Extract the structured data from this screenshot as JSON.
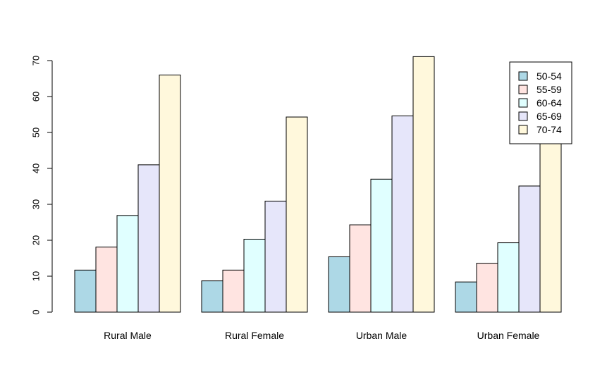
{
  "chart_data": {
    "type": "bar",
    "title": "",
    "xlabel": "",
    "ylabel": "",
    "ylim": [
      0,
      72
    ],
    "yticks": [
      0,
      10,
      20,
      30,
      40,
      50,
      60,
      70
    ],
    "grid": false,
    "legend_position": "top-right",
    "categories": [
      "Rural Male",
      "Rural Female",
      "Urban Male",
      "Urban Female"
    ],
    "series": [
      {
        "name": "50-54",
        "color": "#ADD8E6",
        "values": [
          11.7,
          8.7,
          15.4,
          8.4
        ]
      },
      {
        "name": "55-59",
        "color": "#FFE4E1",
        "values": [
          18.1,
          11.7,
          24.3,
          13.6
        ]
      },
      {
        "name": "60-64",
        "color": "#E0FFFF",
        "values": [
          26.9,
          20.3,
          37.0,
          19.3
        ]
      },
      {
        "name": "65-69",
        "color": "#E6E6FA",
        "values": [
          41.0,
          30.9,
          54.6,
          35.1
        ]
      },
      {
        "name": "70-74",
        "color": "#FFF8DC",
        "values": [
          66.0,
          54.3,
          71.1,
          50.0
        ]
      }
    ]
  }
}
